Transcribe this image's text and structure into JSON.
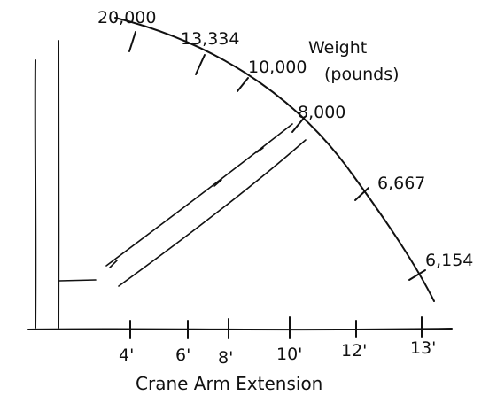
{
  "title": {
    "line1": "Weight",
    "line2": "(pounds)"
  },
  "x_axis": {
    "caption": "Crane Arm Extension",
    "ticks": [
      {
        "value": 4,
        "label": "4'"
      },
      {
        "value": 6,
        "label": "6'"
      },
      {
        "value": 8,
        "label": "8'"
      },
      {
        "value": 10,
        "label": "10'"
      },
      {
        "value": 12,
        "label": "12'"
      },
      {
        "value": 13,
        "label": "13'"
      }
    ]
  },
  "weight_marks": [
    {
      "label": "20,000"
    },
    {
      "label": "13,334"
    },
    {
      "label": "10,000"
    },
    {
      "label": "8,000"
    },
    {
      "label": "6,667"
    },
    {
      "label": "6,154"
    }
  ]
}
